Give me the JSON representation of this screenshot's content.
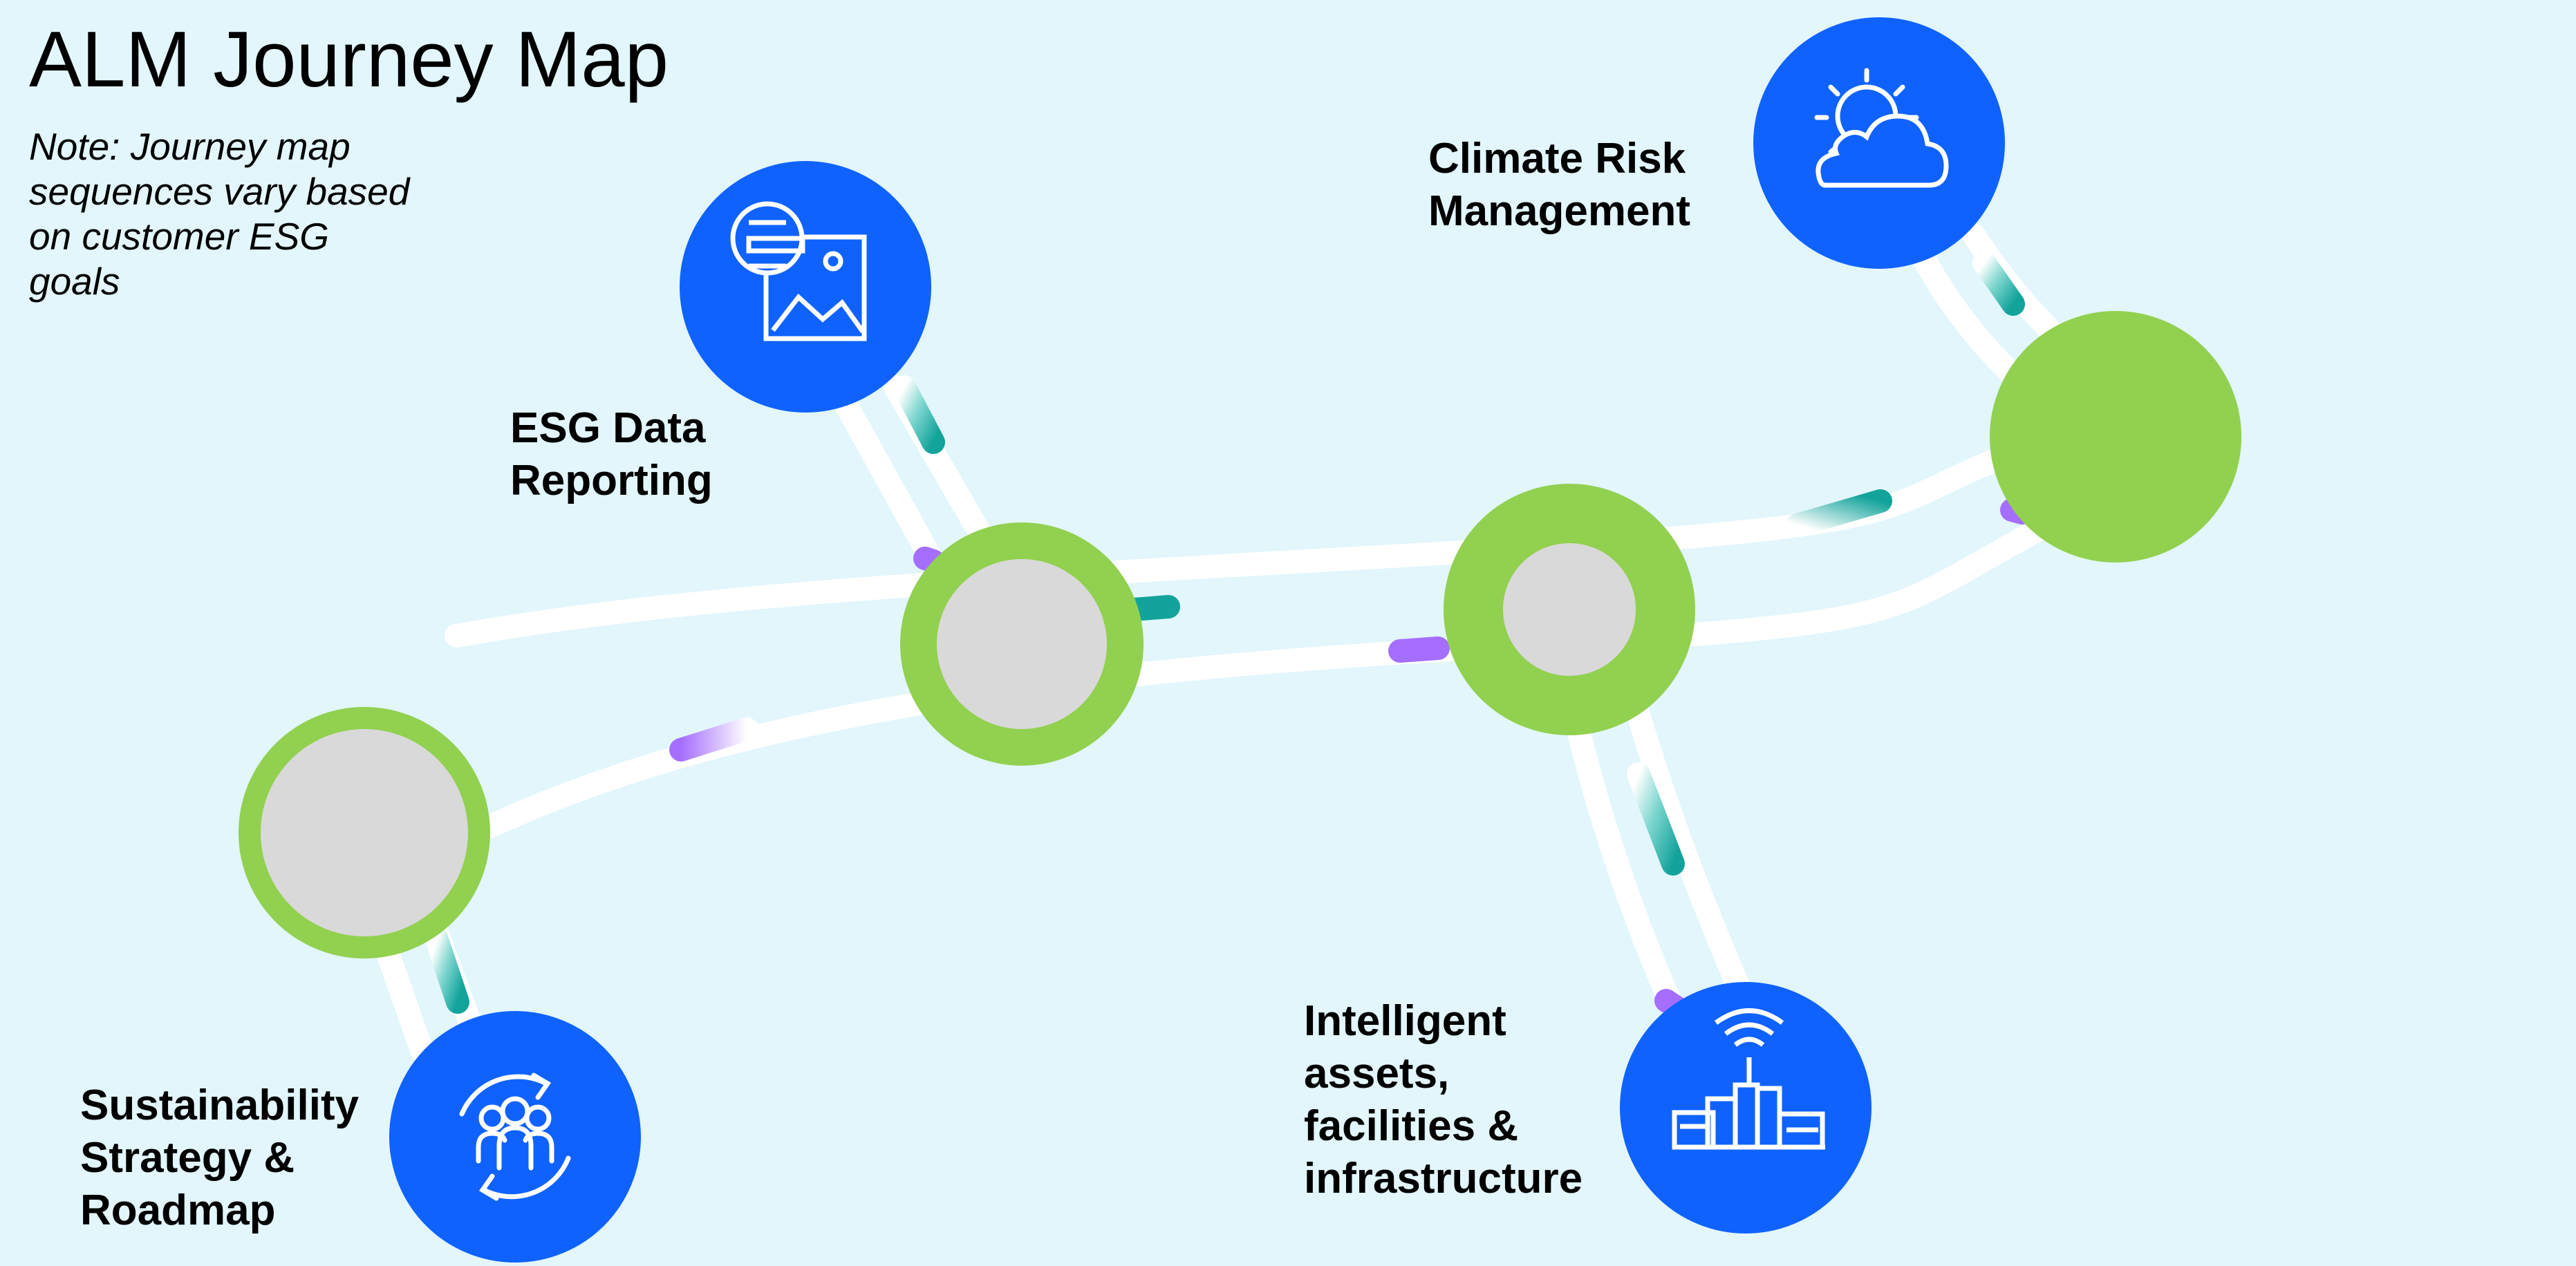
{
  "title": "ALM Journey Map",
  "note": "Note: Journey map sequences vary based on customer ESG goals",
  "colors": {
    "background": "#e2f6fc",
    "path": "#ffffff",
    "milestone_ring": "#92d050",
    "milestone_core": "#d9d9d9",
    "stage_circle": "#0f62fe",
    "accent_teal": "#1aa8a0",
    "accent_purple": "#a56eff"
  },
  "stages": [
    {
      "id": "esg",
      "label": "ESG Data\nReporting",
      "icon": "report-image-icon"
    },
    {
      "id": "climate",
      "label": "Climate Risk\nManagement",
      "icon": "sun-cloud-icon"
    },
    {
      "id": "intelligent",
      "label": "Intelligent\nassets,\nfacilities &\ninfrastructure",
      "icon": "smart-building-icon"
    },
    {
      "id": "sustain",
      "label": "Sustainability\nStrategy  &\nRoadmap",
      "icon": "people-cycle-icon"
    }
  ]
}
